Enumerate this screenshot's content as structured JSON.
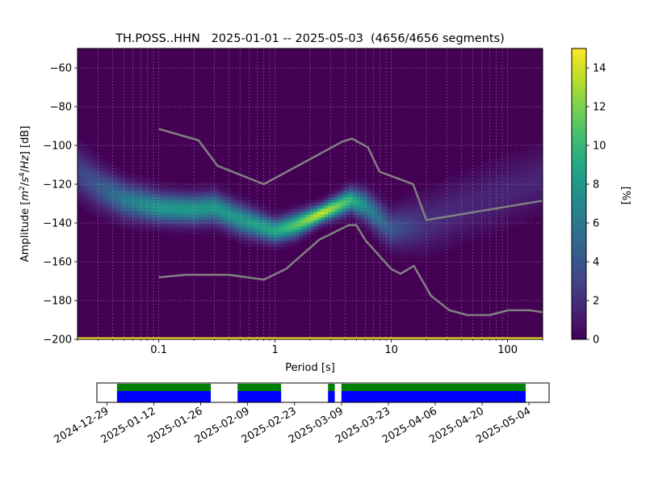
{
  "title": "TH.POSS..HHN   2025-01-01 -- 2025-05-03  (4656/4656 segments)",
  "chart_data": [
    {
      "type": "heatmap",
      "title": "TH.POSS..HHN   2025-01-01 -- 2025-05-03  (4656/4656 segments)",
      "xlabel": "Period [s]",
      "ylabel_parts": [
        "Amplitude [",
        "m",
        "2",
        "/",
        "s",
        "4",
        "/",
        "Hz",
        "] [dB]"
      ],
      "x_scale": "log",
      "xlim": [
        0.02,
        200
      ],
      "ylim": [
        -200,
        -50
      ],
      "x_ticks": [
        {
          "value": 0.1,
          "label": "0.1"
        },
        {
          "value": 1,
          "label": "1"
        },
        {
          "value": 10,
          "label": "10"
        },
        {
          "value": 100,
          "label": "100"
        }
      ],
      "y_ticks": [
        {
          "value": -60,
          "label": "−60"
        },
        {
          "value": -80,
          "label": "−80"
        },
        {
          "value": -100,
          "label": "−100"
        },
        {
          "value": -120,
          "label": "−120"
        },
        {
          "value": -140,
          "label": "−140"
        },
        {
          "value": -160,
          "label": "−160"
        },
        {
          "value": -180,
          "label": "−180"
        },
        {
          "value": -200,
          "label": "−200"
        }
      ],
      "grid": true,
      "colormap": "viridis",
      "colorbar": {
        "label": "[%]",
        "range": [
          0,
          15
        ],
        "ticks": [
          {
            "value": 0,
            "label": "0"
          },
          {
            "value": 2,
            "label": "2"
          },
          {
            "value": 4,
            "label": "4"
          },
          {
            "value": 6,
            "label": "6"
          },
          {
            "value": 8,
            "label": "8"
          },
          {
            "value": 10,
            "label": "10"
          },
          {
            "value": 12,
            "label": "12"
          },
          {
            "value": 14,
            "label": "14"
          }
        ]
      },
      "density_ridge": {
        "points": [
          {
            "x": 0.02,
            "y": -113,
            "peak": 3,
            "spread": 8
          },
          {
            "x": 0.03,
            "y": -121,
            "peak": 4,
            "spread": 7
          },
          {
            "x": 0.05,
            "y": -128,
            "peak": 6,
            "spread": 6
          },
          {
            "x": 0.1,
            "y": -132,
            "peak": 8,
            "spread": 5
          },
          {
            "x": 0.2,
            "y": -133,
            "peak": 8,
            "spread": 5
          },
          {
            "x": 0.3,
            "y": -132,
            "peak": 8,
            "spread": 5
          },
          {
            "x": 0.5,
            "y": -138,
            "peak": 8,
            "spread": 5
          },
          {
            "x": 1.0,
            "y": -144,
            "peak": 9,
            "spread": 4
          },
          {
            "x": 1.5,
            "y": -141,
            "peak": 11,
            "spread": 4
          },
          {
            "x": 2.5,
            "y": -135,
            "peak": 14,
            "spread": 3
          },
          {
            "x": 4.5,
            "y": -128,
            "peak": 10,
            "spread": 4
          },
          {
            "x": 6,
            "y": -131,
            "peak": 7,
            "spread": 5
          },
          {
            "x": 10,
            "y": -143,
            "peak": 4,
            "spread": 6
          },
          {
            "x": 20,
            "y": -140,
            "peak": 2,
            "spread": 9
          },
          {
            "x": 50,
            "y": -130,
            "peak": 1.5,
            "spread": 10
          },
          {
            "x": 200,
            "y": -117,
            "peak": 1.5,
            "spread": 10
          }
        ]
      },
      "series": [
        {
          "name": "",
          "kind": "upper noise model",
          "color": "#808080",
          "points": [
            {
              "x": 0.1,
              "y": -91.5
            },
            {
              "x": 0.22,
              "y": -97.4
            },
            {
              "x": 0.32,
              "y": -110.5
            },
            {
              "x": 0.8,
              "y": -120
            },
            {
              "x": 3.8,
              "y": -98
            },
            {
              "x": 4.6,
              "y": -96.5
            },
            {
              "x": 6.3,
              "y": -101
            },
            {
              "x": 7.9,
              "y": -113.5
            },
            {
              "x": 15.4,
              "y": -120
            },
            {
              "x": 20,
              "y": -138.5
            },
            {
              "x": 354.8,
              "y": -126
            }
          ]
        },
        {
          "name": "",
          "kind": "lower noise model",
          "color": "#808080",
          "points": [
            {
              "x": 0.1,
              "y": -168
            },
            {
              "x": 0.17,
              "y": -166.7
            },
            {
              "x": 0.4,
              "y": -166.7
            },
            {
              "x": 0.8,
              "y": -169.2
            },
            {
              "x": 1.24,
              "y": -163.7
            },
            {
              "x": 2.4,
              "y": -148.6
            },
            {
              "x": 4.3,
              "y": -141.1
            },
            {
              "x": 5.0,
              "y": -141.1
            },
            {
              "x": 6.0,
              "y": -149
            },
            {
              "x": 10.0,
              "y": -163.8
            },
            {
              "x": 12.0,
              "y": -166.2
            },
            {
              "x": 15.6,
              "y": -162.1
            },
            {
              "x": 21.9,
              "y": -177.5
            },
            {
              "x": 31.6,
              "y": -185
            },
            {
              "x": 45,
              "y": -187.5
            },
            {
              "x": 70,
              "y": -187.5
            },
            {
              "x": 101,
              "y": -185
            },
            {
              "x": 154,
              "y": -185
            },
            {
              "x": 200,
              "y": -186
            }
          ]
        }
      ]
    },
    {
      "type": "timeline",
      "x_ticks": [
        {
          "date": "2024-12-29",
          "label": "2024-12-29"
        },
        {
          "date": "2025-01-12",
          "label": "2025-01-12"
        },
        {
          "date": "2025-01-26",
          "label": "2025-01-26"
        },
        {
          "date": "2025-02-09",
          "label": "2025-02-09"
        },
        {
          "date": "2025-02-23",
          "label": "2025-02-23"
        },
        {
          "date": "2025-03-09",
          "label": "2025-03-09"
        },
        {
          "date": "2025-03-23",
          "label": "2025-03-23"
        },
        {
          "date": "2025-04-06",
          "label": "2025-04-06"
        },
        {
          "date": "2025-04-20",
          "label": "2025-04-20"
        },
        {
          "date": "2025-05-04",
          "label": "2025-05-04"
        }
      ],
      "xlim": [
        "2024-12-26",
        "2025-05-10"
      ],
      "coverage_color": "#0000ff",
      "used_color": "#008000",
      "data_segments": [
        {
          "start": "2025-01-01",
          "end": "2025-01-29"
        },
        {
          "start": "2025-02-06",
          "end": "2025-02-19"
        },
        {
          "start": "2025-03-05",
          "end": "2025-03-07"
        },
        {
          "start": "2025-03-09",
          "end": "2025-05-03"
        }
      ]
    }
  ]
}
